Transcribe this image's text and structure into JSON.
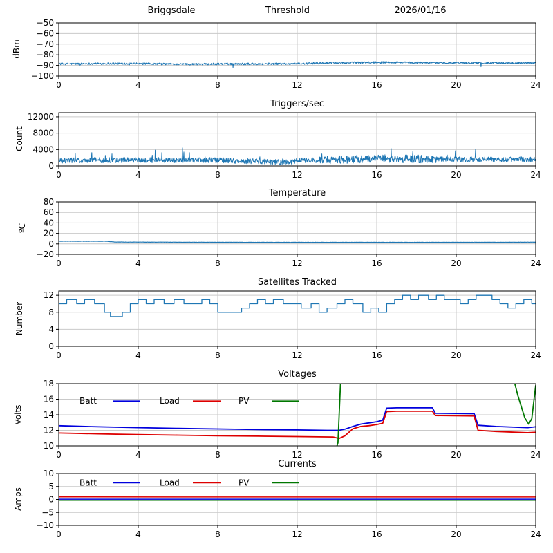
{
  "header": {
    "station": "Briggsdale",
    "panel1_title": "Threshold",
    "date": "2026/01/16"
  },
  "chart_data": [
    {
      "id": "threshold",
      "type": "line",
      "title": "Threshold",
      "ylabel": "dBm",
      "xlim": [
        0,
        24
      ],
      "xticks": [
        0,
        4,
        8,
        12,
        16,
        20,
        24
      ],
      "ylim": [
        -100,
        -50
      ],
      "yticks": [
        -100,
        -90,
        -80,
        -70,
        -60,
        -50
      ],
      "grid": true,
      "series": [
        {
          "name": "dBm",
          "color": "#1f77b4",
          "render": "noisy",
          "lw": 1.0,
          "noise": 0.9,
          "spike_p": 0.004,
          "spike_amp": -3.5,
          "points": [
            [
              0,
              -88.6
            ],
            [
              3,
              -88.2
            ],
            [
              6,
              -88.8
            ],
            [
              9,
              -88.6
            ],
            [
              12,
              -88.4
            ],
            [
              14,
              -87.6
            ],
            [
              16,
              -87.1
            ],
            [
              18,
              -87.4
            ],
            [
              21,
              -87.8
            ],
            [
              24,
              -87.6
            ]
          ]
        }
      ]
    },
    {
      "id": "triggers",
      "type": "line",
      "title": "Triggers/sec",
      "ylabel": "Count",
      "xlim": [
        0,
        24
      ],
      "xticks": [
        0,
        4,
        8,
        12,
        16,
        20,
        24
      ],
      "ylim": [
        0,
        13000
      ],
      "yticks": [
        0,
        4000,
        8000,
        12000
      ],
      "grid": true,
      "series": [
        {
          "name": "count",
          "color": "#1f77b4",
          "render": "noisy",
          "lw": 1.0,
          "noise": 650,
          "noise_boost": [
            13,
            19,
            1.5
          ],
          "spike_p": 0.02,
          "spike_amp": 2500,
          "floor": 250,
          "points": [
            [
              0,
              1350
            ],
            [
              4,
              1450
            ],
            [
              8,
              1400
            ],
            [
              11.5,
              900
            ],
            [
              12,
              1350
            ],
            [
              14,
              1500
            ],
            [
              16,
              1800
            ],
            [
              18,
              1700
            ],
            [
              21,
              1550
            ],
            [
              24,
              1600
            ]
          ]
        }
      ]
    },
    {
      "id": "temperature",
      "type": "line",
      "title": "Temperature",
      "ylabel": "ºC",
      "xlim": [
        0,
        24
      ],
      "xticks": [
        0,
        4,
        8,
        12,
        16,
        20,
        24
      ],
      "ylim": [
        -20,
        80
      ],
      "yticks": [
        -20,
        0,
        20,
        40,
        60,
        80
      ],
      "grid": true,
      "series": [
        {
          "name": "temp",
          "color": "#1f77b4",
          "render": "noisy",
          "lw": 1.2,
          "noise": 0.25,
          "points": [
            [
              0,
              5
            ],
            [
              2.4,
              5
            ],
            [
              2.8,
              3.5
            ],
            [
              6,
              3.2
            ],
            [
              12,
              3.0
            ],
            [
              18,
              3.0
            ],
            [
              24,
              3.2
            ]
          ]
        }
      ]
    },
    {
      "id": "satellites",
      "type": "line",
      "title": "Satellites Tracked",
      "ylabel": "Number",
      "xlim": [
        0,
        24
      ],
      "xticks": [
        0,
        4,
        8,
        12,
        16,
        20,
        24
      ],
      "ylim": [
        0,
        13
      ],
      "yticks": [
        0,
        4,
        8,
        12
      ],
      "grid": true,
      "series": [
        {
          "name": "sats",
          "color": "#1f77b4",
          "render": "step",
          "lw": 1.3,
          "points": [
            [
              0,
              10
            ],
            [
              0.4,
              11
            ],
            [
              0.9,
              10
            ],
            [
              1.3,
              11
            ],
            [
              1.8,
              10
            ],
            [
              2.3,
              8
            ],
            [
              2.6,
              7
            ],
            [
              3.2,
              8
            ],
            [
              3.6,
              10
            ],
            [
              4.0,
              11
            ],
            [
              4.4,
              10
            ],
            [
              4.8,
              11
            ],
            [
              5.3,
              10
            ],
            [
              5.8,
              11
            ],
            [
              6.3,
              10
            ],
            [
              7.2,
              11
            ],
            [
              7.6,
              10
            ],
            [
              8.0,
              8
            ],
            [
              9.2,
              9
            ],
            [
              9.6,
              10
            ],
            [
              10.0,
              11
            ],
            [
              10.4,
              10
            ],
            [
              10.8,
              11
            ],
            [
              11.3,
              10
            ],
            [
              12.2,
              9
            ],
            [
              12.7,
              10
            ],
            [
              13.1,
              8
            ],
            [
              13.5,
              9
            ],
            [
              14.0,
              10
            ],
            [
              14.4,
              11
            ],
            [
              14.8,
              10
            ],
            [
              15.3,
              8
            ],
            [
              15.7,
              9
            ],
            [
              16.1,
              8
            ],
            [
              16.5,
              10
            ],
            [
              16.9,
              11
            ],
            [
              17.3,
              12
            ],
            [
              17.7,
              11
            ],
            [
              18.1,
              12
            ],
            [
              18.6,
              11
            ],
            [
              19.0,
              12
            ],
            [
              19.4,
              11
            ],
            [
              20.2,
              10
            ],
            [
              20.6,
              11
            ],
            [
              21.0,
              12
            ],
            [
              21.8,
              11
            ],
            [
              22.2,
              10
            ],
            [
              22.6,
              9
            ],
            [
              23.0,
              10
            ],
            [
              23.4,
              11
            ],
            [
              23.8,
              10
            ],
            [
              24,
              10
            ]
          ]
        }
      ]
    },
    {
      "id": "voltages",
      "type": "line",
      "title": "Voltages",
      "ylabel": "Volts",
      "xlim": [
        0,
        24
      ],
      "xticks": [
        0,
        4,
        8,
        12,
        16,
        20,
        24
      ],
      "ylim": [
        10,
        18
      ],
      "yticks": [
        10,
        12,
        14,
        16,
        18
      ],
      "grid": true,
      "legend": true,
      "legend_y": 0.28,
      "series": [
        {
          "name": "Batt",
          "color": "#0000dd",
          "render": "line",
          "lw": 1.8,
          "points": [
            [
              0,
              12.6
            ],
            [
              2,
              12.45
            ],
            [
              4,
              12.35
            ],
            [
              6,
              12.25
            ],
            [
              8,
              12.18
            ],
            [
              10,
              12.1
            ],
            [
              12,
              12.05
            ],
            [
              13.5,
              12.0
            ],
            [
              14.1,
              12.0
            ],
            [
              14.4,
              12.15
            ],
            [
              14.8,
              12.5
            ],
            [
              15.2,
              12.8
            ],
            [
              15.6,
              12.95
            ],
            [
              16.0,
              13.1
            ],
            [
              16.3,
              13.3
            ],
            [
              16.5,
              14.85
            ],
            [
              17,
              14.9
            ],
            [
              18.8,
              14.9
            ],
            [
              18.95,
              14.2
            ],
            [
              20.9,
              14.15
            ],
            [
              21.1,
              12.65
            ],
            [
              22,
              12.5
            ],
            [
              23,
              12.4
            ],
            [
              23.6,
              12.35
            ],
            [
              24,
              12.45
            ]
          ]
        },
        {
          "name": "Load",
          "color": "#dd0000",
          "render": "line",
          "lw": 1.8,
          "points": [
            [
              0,
              11.65
            ],
            [
              2,
              11.55
            ],
            [
              4,
              11.45
            ],
            [
              6,
              11.38
            ],
            [
              8,
              11.3
            ],
            [
              10,
              11.25
            ],
            [
              12,
              11.2
            ],
            [
              13.8,
              11.15
            ],
            [
              14.1,
              10.95
            ],
            [
              14.4,
              11.3
            ],
            [
              14.8,
              12.2
            ],
            [
              15.2,
              12.5
            ],
            [
              15.6,
              12.6
            ],
            [
              16,
              12.75
            ],
            [
              16.3,
              12.9
            ],
            [
              16.5,
              14.4
            ],
            [
              17,
              14.45
            ],
            [
              18.8,
              14.45
            ],
            [
              18.95,
              13.9
            ],
            [
              20.9,
              13.85
            ],
            [
              21.1,
              12.0
            ],
            [
              22,
              11.85
            ],
            [
              23,
              11.75
            ],
            [
              23.6,
              11.7
            ],
            [
              24,
              11.75
            ]
          ]
        },
        {
          "name": "PV",
          "color": "#007700",
          "render": "line",
          "lw": 1.8,
          "points": [
            [
              14.0,
              10.0
            ],
            [
              14.05,
              10.4
            ],
            [
              14.2,
              19.5
            ],
            [
              22.8,
              19.5
            ],
            [
              23.1,
              16.5
            ],
            [
              23.45,
              13.6
            ],
            [
              23.65,
              12.8
            ],
            [
              23.8,
              13.5
            ],
            [
              24,
              17.8
            ]
          ]
        }
      ]
    },
    {
      "id": "currents",
      "type": "line",
      "title": "Currents",
      "ylabel": "Amps",
      "xlim": [
        0,
        24
      ],
      "xticks": [
        0,
        4,
        8,
        12,
        16,
        20,
        24
      ],
      "ylim": [
        -10,
        10
      ],
      "yticks": [
        -10,
        -5,
        0,
        5,
        10
      ],
      "grid": true,
      "legend": true,
      "legend_y": 0.18,
      "series": [
        {
          "name": "Batt",
          "color": "#0000dd",
          "render": "line",
          "lw": 1.5,
          "points": [
            [
              0,
              0.1
            ],
            [
              12,
              0.1
            ],
            [
              24,
              0.1
            ]
          ]
        },
        {
          "name": "Load",
          "color": "#dd0000",
          "render": "line",
          "lw": 1.5,
          "points": [
            [
              0,
              1.0
            ],
            [
              12,
              0.95
            ],
            [
              24,
              0.95
            ]
          ]
        },
        {
          "name": "PV",
          "color": "#007700",
          "render": "line",
          "lw": 1.5,
          "points": [
            [
              0,
              -0.35
            ],
            [
              12,
              -0.35
            ],
            [
              24,
              -0.35
            ]
          ]
        }
      ]
    }
  ]
}
